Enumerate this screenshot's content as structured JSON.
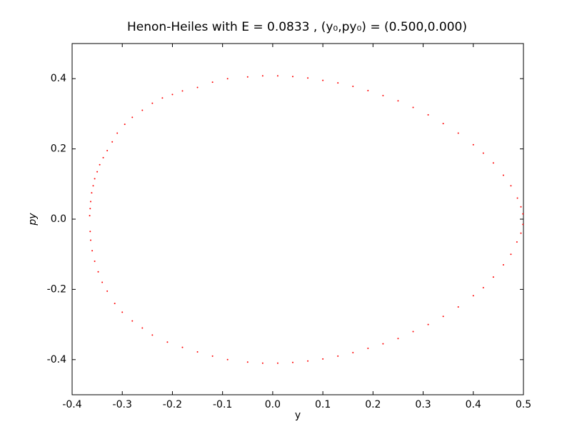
{
  "chart_data": {
    "type": "scatter",
    "title": "Henon-Heiles with E = 0.0833 , (y₀,py₀) = (0.500,0.000)",
    "x_label": "y",
    "y_label": "py",
    "xlim": [
      -0.4,
      0.5
    ],
    "ylim": [
      -0.5,
      0.5
    ],
    "xticks": [
      -0.4,
      -0.3,
      -0.2,
      -0.1,
      {
        "value": 0,
        "label": "0.0"
      },
      0.1,
      0.2,
      0.3,
      0.4,
      0.5
    ],
    "yticks": [
      -0.4,
      -0.2,
      {
        "value": 0,
        "label": "0.0"
      },
      0.2,
      0.4
    ],
    "grid": false,
    "series": [
      {
        "color": "#ff0000",
        "x": [
          -0.365,
          -0.364,
          -0.363,
          -0.361,
          -0.358,
          -0.355,
          -0.35,
          -0.345,
          -0.338,
          -0.33,
          -0.32,
          -0.31,
          -0.295,
          -0.28,
          -0.26,
          -0.24,
          -0.22,
          -0.2,
          -0.18,
          -0.15,
          -0.12,
          -0.09,
          -0.05,
          -0.02,
          0.01,
          0.04,
          0.07,
          0.1,
          0.13,
          0.16,
          0.19,
          0.22,
          0.25,
          0.28,
          0.31,
          0.34,
          0.37,
          0.4,
          0.42,
          0.44,
          0.46,
          0.475,
          0.488,
          0.495,
          0.499,
          0.499,
          0.495,
          0.487,
          0.475,
          0.46,
          0.44,
          0.42,
          0.4,
          0.37,
          0.34,
          0.31,
          0.28,
          0.25,
          0.22,
          0.19,
          0.16,
          0.13,
          0.1,
          0.07,
          0.04,
          0.01,
          -0.02,
          -0.05,
          -0.09,
          -0.12,
          -0.15,
          -0.18,
          -0.21,
          -0.24,
          -0.26,
          -0.28,
          -0.3,
          -0.315,
          -0.33,
          -0.34,
          -0.348,
          -0.355,
          -0.36,
          -0.363,
          -0.364
        ],
        "values": [
          0.01,
          0.03,
          0.05,
          0.075,
          0.095,
          0.115,
          0.135,
          0.155,
          0.175,
          0.195,
          0.22,
          0.245,
          0.27,
          0.29,
          0.31,
          0.33,
          0.345,
          0.355,
          0.365,
          0.375,
          0.39,
          0.4,
          0.405,
          0.408,
          0.408,
          0.406,
          0.402,
          0.395,
          0.388,
          0.378,
          0.366,
          0.352,
          0.337,
          0.318,
          0.297,
          0.272,
          0.245,
          0.212,
          0.188,
          0.16,
          0.125,
          0.095,
          0.06,
          0.035,
          0.015,
          -0.015,
          -0.04,
          -0.065,
          -0.1,
          -0.13,
          -0.165,
          -0.195,
          -0.218,
          -0.25,
          -0.277,
          -0.3,
          -0.32,
          -0.34,
          -0.355,
          -0.368,
          -0.38,
          -0.39,
          -0.398,
          -0.404,
          -0.408,
          -0.41,
          -0.41,
          -0.407,
          -0.4,
          -0.39,
          -0.378,
          -0.365,
          -0.35,
          -0.33,
          -0.31,
          -0.29,
          -0.265,
          -0.24,
          -0.205,
          -0.18,
          -0.15,
          -0.12,
          -0.09,
          -0.06,
          -0.035
        ]
      }
    ]
  }
}
